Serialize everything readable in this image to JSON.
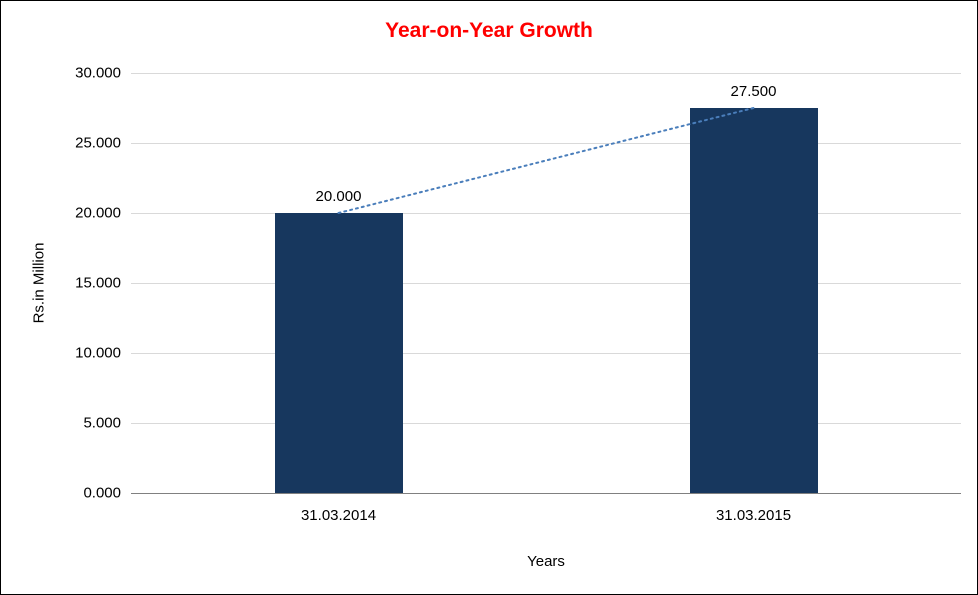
{
  "chart_data": {
    "type": "bar",
    "title": "Year-on-Year Growth",
    "xlabel": "Years",
    "ylabel": "Rs.in Million",
    "categories": [
      "31.03.2014",
      "31.03.2015"
    ],
    "values": [
      20.0,
      27.5
    ],
    "data_labels": [
      "20.000",
      "27.500"
    ],
    "ylim": [
      0,
      30
    ],
    "yticks": [
      0,
      5,
      10,
      15,
      20,
      25,
      30
    ],
    "ytick_labels": [
      "0.000",
      "5.000",
      "10.000",
      "15.000",
      "20.000",
      "25.000",
      "30.000"
    ],
    "grid": true,
    "legend": "none",
    "trendline": true,
    "colors": {
      "title": "#ff0000",
      "bar": "#17375e",
      "trendline": "#4a7ebb",
      "gridline": "#d9d9d9",
      "axis": "#808080",
      "text": "#000000"
    }
  }
}
